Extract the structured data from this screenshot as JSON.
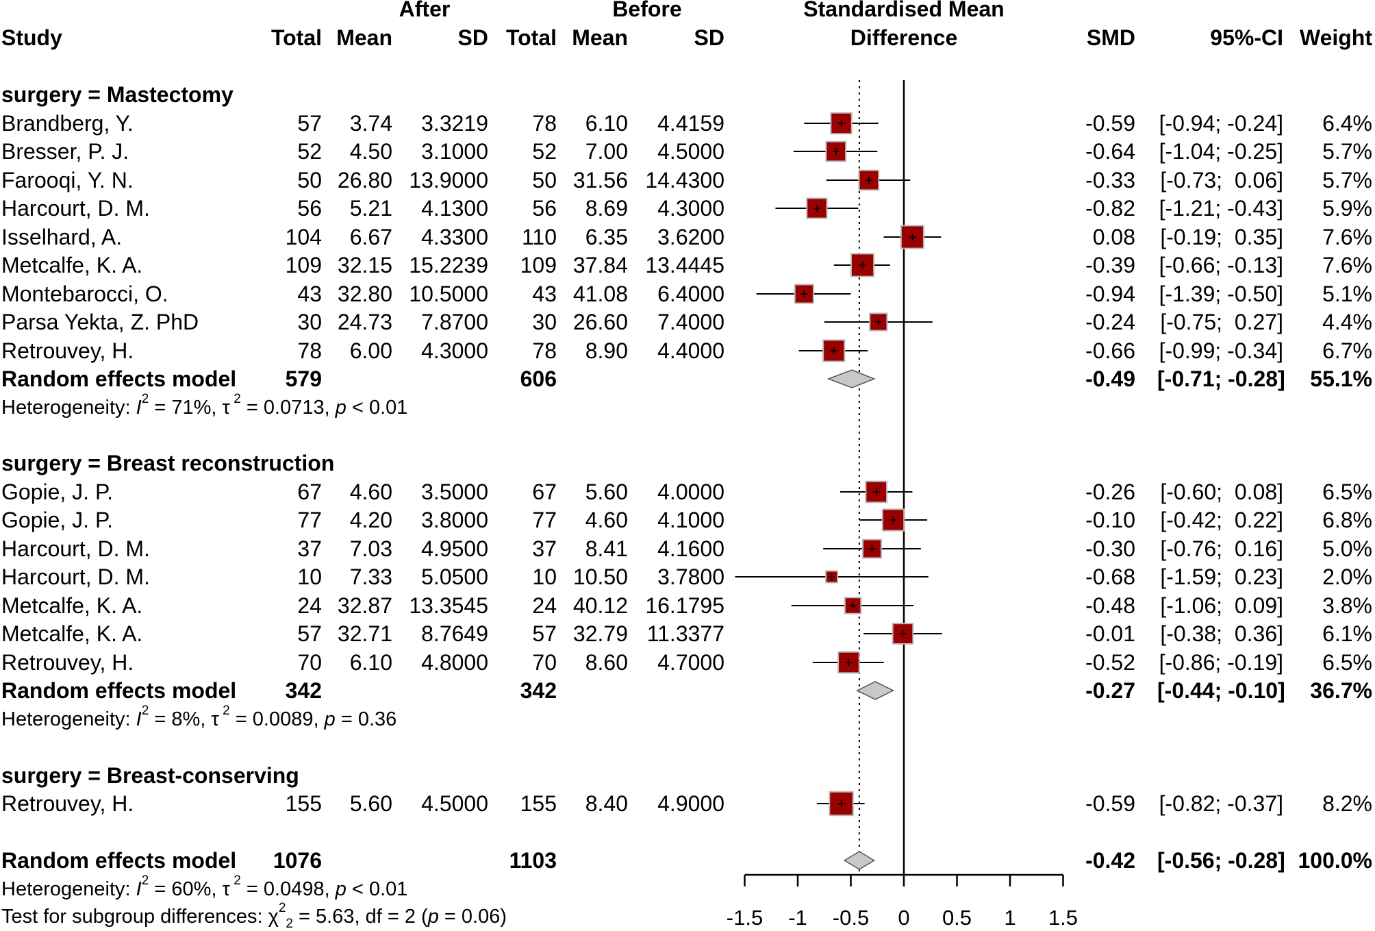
{
  "header": {
    "group_after": "After",
    "group_before": "Before",
    "plot_title_line1": "Standardised Mean",
    "plot_title_line2": "Difference",
    "col_study": "Study",
    "col_total_after": "Total",
    "col_mean_after": "Mean",
    "col_sd_after": "SD",
    "col_total_before": "Total",
    "col_mean_before": "Mean",
    "col_sd_before": "SD",
    "col_smd": "SMD",
    "col_ci": "95%-CI",
    "col_weight": "Weight"
  },
  "subgroups": [
    {
      "title": "surgery = Mastectomy",
      "summary": {
        "label": "Random effects model",
        "total_after": "579",
        "total_before": "606",
        "smd": "-0.49",
        "ci": "[-0.71; -0.28]",
        "weight": "55.1%"
      },
      "het": {
        "prefix": "Heterogeneity: ",
        "i2": "71%",
        "tau2": "0.0713",
        "p": "< 0.01"
      }
    },
    {
      "title": "surgery = Breast reconstruction",
      "summary": {
        "label": "Random effects model",
        "total_after": "342",
        "total_before": "342",
        "smd": "-0.27",
        "ci": "[-0.44; -0.10]",
        "weight": "36.7%"
      },
      "het": {
        "prefix": "Heterogeneity: ",
        "i2": "8%",
        "tau2": "0.0089",
        "p": "= 0.36"
      }
    },
    {
      "title": "surgery = Breast-conserving"
    }
  ],
  "overall": {
    "label": "Random effects model",
    "total_after": "1076",
    "total_before": "1103",
    "smd": "-0.42",
    "ci": "[-0.56; -0.28]",
    "weight": "100.0%",
    "het": {
      "prefix": "Heterogeneity: ",
      "i2": "60%",
      "tau2": "0.0498",
      "p": "< 0.01"
    },
    "test": {
      "prefix": "Test for subgroup differences: ",
      "chi_symbol": "χ",
      "chi_sub": "2",
      "chi_sup": "2",
      "chi_value": "5.63",
      "df": "df = 2",
      "p": "= 0.06"
    }
  },
  "chart_data": {
    "type": "forest",
    "title": "Standardised Mean Difference",
    "x_ticks": [
      "-1.5",
      "-1",
      "-0.5",
      "0",
      "0.5",
      "1",
      "1.5"
    ],
    "xlim": [
      -1.5,
      1.5
    ],
    "overall_reference": -0.42,
    "colors": {
      "square": "#990000",
      "square_border": "#b9b9b9",
      "diamond": "#c8c8c8",
      "line": "#000000"
    },
    "studies": [
      {
        "group": 0,
        "study": "Brandberg, Y.",
        "n_after": "57",
        "mean_after": "3.74",
        "sd_after": "3.3219",
        "n_before": "78",
        "mean_before": "6.10",
        "sd_before": "4.4159",
        "smd": -0.59,
        "lo": -0.94,
        "hi": -0.24,
        "smd_text": "-0.59",
        "ci_text": "[-0.94; -0.24]",
        "weight": 6.4,
        "weight_text": "6.4%"
      },
      {
        "group": 0,
        "study": "Bresser, P. J.",
        "n_after": "52",
        "mean_after": "4.50",
        "sd_after": "3.1000",
        "n_before": "52",
        "mean_before": "7.00",
        "sd_before": "4.5000",
        "smd": -0.64,
        "lo": -1.04,
        "hi": -0.25,
        "smd_text": "-0.64",
        "ci_text": "[-1.04; -0.25]",
        "weight": 5.7,
        "weight_text": "5.7%"
      },
      {
        "group": 0,
        "study": "Farooqi, Y. N.",
        "n_after": "50",
        "mean_after": "26.80",
        "sd_after": "13.9000",
        "n_before": "50",
        "mean_before": "31.56",
        "sd_before": "14.4300",
        "smd": -0.33,
        "lo": -0.73,
        "hi": 0.06,
        "smd_text": "-0.33",
        "ci_text": "[-0.73;  0.06]",
        "weight": 5.7,
        "weight_text": "5.7%"
      },
      {
        "group": 0,
        "study": "Harcourt, D. M.",
        "n_after": "56",
        "mean_after": "5.21",
        "sd_after": "4.1300",
        "n_before": "56",
        "mean_before": "8.69",
        "sd_before": "4.3000",
        "smd": -0.82,
        "lo": -1.21,
        "hi": -0.43,
        "smd_text": "-0.82",
        "ci_text": "[-1.21; -0.43]",
        "weight": 5.9,
        "weight_text": "5.9%"
      },
      {
        "group": 0,
        "study": "Isselhard, A.",
        "n_after": "104",
        "mean_after": "6.67",
        "sd_after": "4.3300",
        "n_before": "110",
        "mean_before": "6.35",
        "sd_before": "3.6200",
        "smd": 0.08,
        "lo": -0.19,
        "hi": 0.35,
        "smd_text": "0.08",
        "ci_text": "[-0.19;  0.35]",
        "weight": 7.6,
        "weight_text": "7.6%"
      },
      {
        "group": 0,
        "study": "Metcalfe, K. A.",
        "n_after": "109",
        "mean_after": "32.15",
        "sd_after": "15.2239",
        "n_before": "109",
        "mean_before": "37.84",
        "sd_before": "13.4445",
        "smd": -0.39,
        "lo": -0.66,
        "hi": -0.13,
        "smd_text": "-0.39",
        "ci_text": "[-0.66; -0.13]",
        "weight": 7.6,
        "weight_text": "7.6%"
      },
      {
        "group": 0,
        "study": "Montebarocci, O.",
        "n_after": "43",
        "mean_after": "32.80",
        "sd_after": "10.5000",
        "n_before": "43",
        "mean_before": "41.08",
        "sd_before": "6.4000",
        "smd": -0.94,
        "lo": -1.39,
        "hi": -0.5,
        "smd_text": "-0.94",
        "ci_text": "[-1.39; -0.50]",
        "weight": 5.1,
        "weight_text": "5.1%"
      },
      {
        "group": 0,
        "study": "Parsa Yekta, Z. PhD",
        "n_after": "30",
        "mean_after": "24.73",
        "sd_after": "7.8700",
        "n_before": "30",
        "mean_before": "26.60",
        "sd_before": "7.4000",
        "smd": -0.24,
        "lo": -0.75,
        "hi": 0.27,
        "smd_text": "-0.24",
        "ci_text": "[-0.75;  0.27]",
        "weight": 4.4,
        "weight_text": "4.4%"
      },
      {
        "group": 0,
        "study": "Retrouvey, H.",
        "n_after": "78",
        "mean_after": "6.00",
        "sd_after": "4.3000",
        "n_before": "78",
        "mean_before": "8.90",
        "sd_before": "4.4000",
        "smd": -0.66,
        "lo": -0.99,
        "hi": -0.34,
        "smd_text": "-0.66",
        "ci_text": "[-0.99; -0.34]",
        "weight": 6.7,
        "weight_text": "6.7%"
      },
      {
        "group": 1,
        "study": "Gopie, J. P.",
        "n_after": "67",
        "mean_after": "4.60",
        "sd_after": "3.5000",
        "n_before": "67",
        "mean_before": "5.60",
        "sd_before": "4.0000",
        "smd": -0.26,
        "lo": -0.6,
        "hi": 0.08,
        "smd_text": "-0.26",
        "ci_text": "[-0.60;  0.08]",
        "weight": 6.5,
        "weight_text": "6.5%"
      },
      {
        "group": 1,
        "study": "Gopie, J. P.",
        "n_after": "77",
        "mean_after": "4.20",
        "sd_after": "3.8000",
        "n_before": "77",
        "mean_before": "4.60",
        "sd_before": "4.1000",
        "smd": -0.1,
        "lo": -0.42,
        "hi": 0.22,
        "smd_text": "-0.10",
        "ci_text": "[-0.42;  0.22]",
        "weight": 6.8,
        "weight_text": "6.8%"
      },
      {
        "group": 1,
        "study": "Harcourt, D. M.",
        "n_after": "37",
        "mean_after": "7.03",
        "sd_after": "4.9500",
        "n_before": "37",
        "mean_before": "8.41",
        "sd_before": "4.1600",
        "smd": -0.3,
        "lo": -0.76,
        "hi": 0.16,
        "smd_text": "-0.30",
        "ci_text": "[-0.76;  0.16]",
        "weight": 5.0,
        "weight_text": "5.0%"
      },
      {
        "group": 1,
        "study": "Harcourt, D. M.",
        "n_after": "10",
        "mean_after": "7.33",
        "sd_after": "5.0500",
        "n_before": "10",
        "mean_before": "10.50",
        "sd_before": "3.7800",
        "smd": -0.68,
        "lo": -1.59,
        "hi": 0.23,
        "smd_text": "-0.68",
        "ci_text": "[-1.59;  0.23]",
        "weight": 2.0,
        "weight_text": "2.0%"
      },
      {
        "group": 1,
        "study": "Metcalfe, K. A.",
        "n_after": "24",
        "mean_after": "32.87",
        "sd_after": "13.3545",
        "n_before": "24",
        "mean_before": "40.12",
        "sd_before": "16.1795",
        "smd": -0.48,
        "lo": -1.06,
        "hi": 0.09,
        "smd_text": "-0.48",
        "ci_text": "[-1.06;  0.09]",
        "weight": 3.8,
        "weight_text": "3.8%"
      },
      {
        "group": 1,
        "study": "Metcalfe, K. A.",
        "n_after": "57",
        "mean_after": "32.71",
        "sd_after": "8.7649",
        "n_before": "57",
        "mean_before": "32.79",
        "sd_before": "11.3377",
        "smd": -0.01,
        "lo": -0.38,
        "hi": 0.36,
        "smd_text": "-0.01",
        "ci_text": "[-0.38;  0.36]",
        "weight": 6.1,
        "weight_text": "6.1%"
      },
      {
        "group": 1,
        "study": "Retrouvey, H.",
        "n_after": "70",
        "mean_after": "6.10",
        "sd_after": "4.8000",
        "n_before": "70",
        "mean_before": "8.60",
        "sd_before": "4.7000",
        "smd": -0.52,
        "lo": -0.86,
        "hi": -0.19,
        "smd_text": "-0.52",
        "ci_text": "[-0.86; -0.19]",
        "weight": 6.5,
        "weight_text": "6.5%"
      },
      {
        "group": 2,
        "study": "Retrouvey, H.",
        "n_after": "155",
        "mean_after": "5.60",
        "sd_after": "4.5000",
        "n_before": "155",
        "mean_before": "8.40",
        "sd_before": "4.9000",
        "smd": -0.59,
        "lo": -0.82,
        "hi": -0.37,
        "smd_text": "-0.59",
        "ci_text": "[-0.82; -0.37]",
        "weight": 8.2,
        "weight_text": "8.2%"
      }
    ],
    "diamonds": [
      {
        "name": "Mastectomy",
        "est": -0.49,
        "lo": -0.71,
        "hi": -0.28
      },
      {
        "name": "Breast reconstruction",
        "est": -0.27,
        "lo": -0.44,
        "hi": -0.1
      },
      {
        "name": "Overall",
        "est": -0.42,
        "lo": -0.56,
        "hi": -0.28
      }
    ]
  }
}
